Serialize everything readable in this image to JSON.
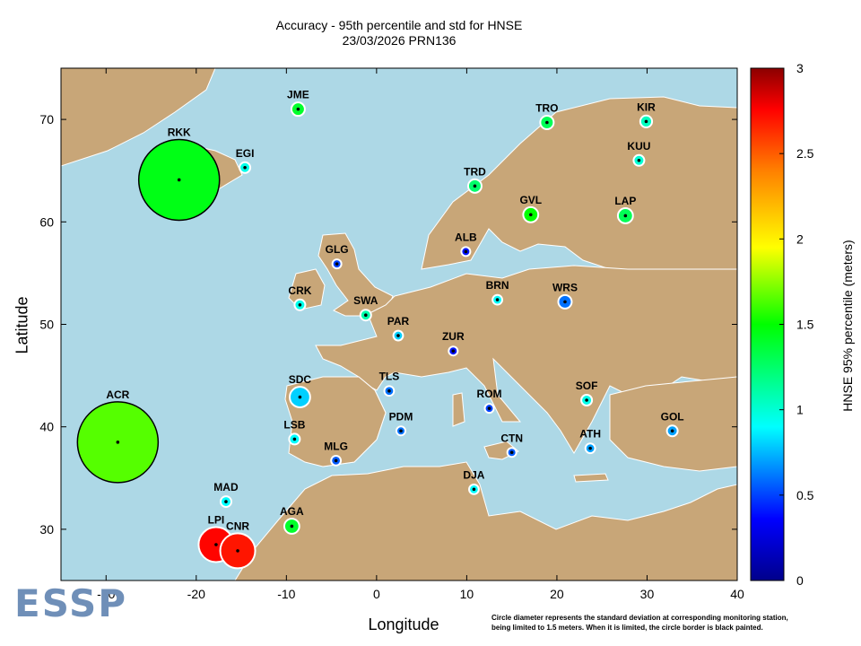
{
  "title": "Accuracy - 95th percentile and std for HNSE",
  "subtitle": "23/03/2026 PRN136",
  "xlabel": "Longitude",
  "ylabel": "Latitude",
  "colorbar_label": "HNSE 95% percentile (meters)",
  "note_line1": "Circle diameter represents the standard deviation at corresponding monitoring station,",
  "note_line2": "being limited to 1.5 meters. When it is limited, the circle border is black painted.",
  "logo_text": "ESSP",
  "colors": {
    "sea": "#add8e6",
    "land": "#c8a678",
    "border": "#ffffff"
  },
  "chart_data": {
    "type": "scatter",
    "xlim": [
      -35,
      40
    ],
    "ylim": [
      25,
      75
    ],
    "xticks": [
      -30,
      -20,
      -10,
      0,
      10,
      20,
      30,
      40
    ],
    "yticks": [
      30,
      40,
      50,
      60,
      70
    ],
    "colorbar": {
      "min": 0,
      "max": 3,
      "ticks": [
        "0",
        "0.5",
        "1",
        "1.5",
        "2",
        "2.5",
        "3"
      ]
    },
    "stations": [
      {
        "name": "JME",
        "lon": -8.7,
        "lat": 71.0,
        "hnse95": 1.4,
        "std": 0.25,
        "limited": false
      },
      {
        "name": "TRO",
        "lon": 18.9,
        "lat": 69.7,
        "hnse95": 1.3,
        "std": 0.25,
        "limited": false
      },
      {
        "name": "KIR",
        "lon": 29.9,
        "lat": 69.8,
        "hnse95": 1.05,
        "std": 0.22,
        "limited": false
      },
      {
        "name": "EGI",
        "lon": -14.6,
        "lat": 65.3,
        "hnse95": 0.95,
        "std": 0.2,
        "limited": false
      },
      {
        "name": "RKK",
        "lon": -21.9,
        "lat": 64.1,
        "hnse95": 1.45,
        "std": 1.5,
        "limited": true
      },
      {
        "name": "KUU",
        "lon": 29.1,
        "lat": 66.0,
        "hnse95": 1.0,
        "std": 0.2,
        "limited": false
      },
      {
        "name": "TRD",
        "lon": 10.9,
        "lat": 63.5,
        "hnse95": 1.25,
        "std": 0.25,
        "limited": false
      },
      {
        "name": "GVL",
        "lon": 17.1,
        "lat": 60.7,
        "hnse95": 1.5,
        "std": 0.28,
        "limited": false
      },
      {
        "name": "LAP",
        "lon": 27.6,
        "lat": 60.6,
        "hnse95": 1.3,
        "std": 0.28,
        "limited": false
      },
      {
        "name": "ALB",
        "lon": 9.9,
        "lat": 57.1,
        "hnse95": 0.4,
        "std": 0.12,
        "limited": false
      },
      {
        "name": "GLG",
        "lon": -4.4,
        "lat": 55.9,
        "hnse95": 0.5,
        "std": 0.12,
        "limited": false
      },
      {
        "name": "CRK",
        "lon": -8.5,
        "lat": 51.9,
        "hnse95": 0.95,
        "std": 0.2,
        "limited": false
      },
      {
        "name": "SWA",
        "lon": -1.2,
        "lat": 50.9,
        "hnse95": 1.1,
        "std": 0.2,
        "limited": false
      },
      {
        "name": "BRN",
        "lon": 13.4,
        "lat": 52.4,
        "hnse95": 0.9,
        "std": 0.18,
        "limited": false
      },
      {
        "name": "WRS",
        "lon": 20.9,
        "lat": 52.2,
        "hnse95": 0.6,
        "std": 0.25,
        "limited": false
      },
      {
        "name": "PAR",
        "lon": 2.4,
        "lat": 48.9,
        "hnse95": 0.8,
        "std": 0.18,
        "limited": false
      },
      {
        "name": "ZUR",
        "lon": 8.5,
        "lat": 47.4,
        "hnse95": 0.4,
        "std": 0.15,
        "limited": false
      },
      {
        "name": "TLS",
        "lon": 1.4,
        "lat": 43.5,
        "hnse95": 0.6,
        "std": 0.18,
        "limited": false
      },
      {
        "name": "SDC",
        "lon": -8.5,
        "lat": 42.9,
        "hnse95": 0.8,
        "std": 0.38,
        "limited": false
      },
      {
        "name": "ROM",
        "lon": 12.5,
        "lat": 41.8,
        "hnse95": 0.5,
        "std": 0.15,
        "limited": false
      },
      {
        "name": "SOF",
        "lon": 23.3,
        "lat": 42.6,
        "hnse95": 0.95,
        "std": 0.2,
        "limited": false
      },
      {
        "name": "GOL",
        "lon": 32.8,
        "lat": 39.6,
        "hnse95": 0.7,
        "std": 0.2,
        "limited": false
      },
      {
        "name": "ACR",
        "lon": -28.7,
        "lat": 38.5,
        "hnse95": 1.65,
        "std": 1.5,
        "limited": true
      },
      {
        "name": "LSB",
        "lon": -9.1,
        "lat": 38.8,
        "hnse95": 0.9,
        "std": 0.2,
        "limited": false
      },
      {
        "name": "PDM",
        "lon": 2.7,
        "lat": 39.6,
        "hnse95": 0.6,
        "std": 0.15,
        "limited": false
      },
      {
        "name": "MLG",
        "lon": -4.5,
        "lat": 36.7,
        "hnse95": 0.55,
        "std": 0.18,
        "limited": false
      },
      {
        "name": "CTN",
        "lon": 15.0,
        "lat": 37.5,
        "hnse95": 0.55,
        "std": 0.15,
        "limited": false
      },
      {
        "name": "ATH",
        "lon": 23.7,
        "lat": 37.9,
        "hnse95": 0.7,
        "std": 0.18,
        "limited": false
      },
      {
        "name": "DJA",
        "lon": 10.8,
        "lat": 33.9,
        "hnse95": 0.9,
        "std": 0.18,
        "limited": false
      },
      {
        "name": "MAD",
        "lon": -16.7,
        "lat": 32.7,
        "hnse95": 0.9,
        "std": 0.2,
        "limited": false
      },
      {
        "name": "AGA",
        "lon": -9.4,
        "lat": 30.3,
        "hnse95": 1.4,
        "std": 0.28,
        "limited": false
      },
      {
        "name": "LPI",
        "lon": -17.8,
        "lat": 28.5,
        "hnse95": 2.75,
        "std": 0.65,
        "limited": false
      },
      {
        "name": "CNR",
        "lon": -15.4,
        "lat": 27.9,
        "hnse95": 2.7,
        "std": 0.65,
        "limited": false
      }
    ]
  }
}
